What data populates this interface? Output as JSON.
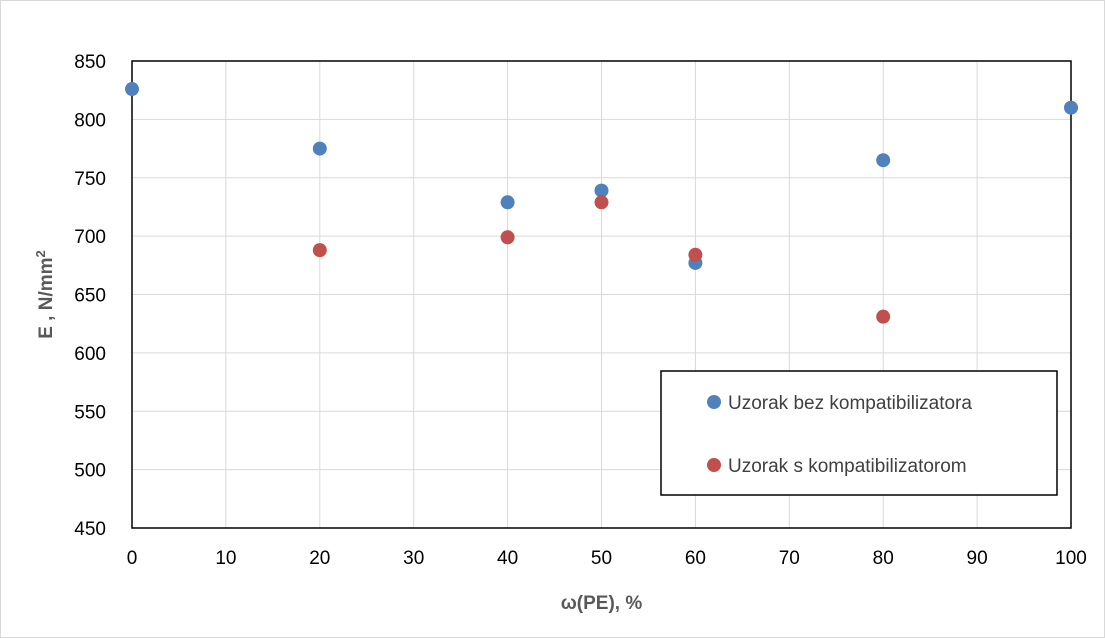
{
  "chart_data": {
    "type": "scatter",
    "xlabel": "ω(PE), %",
    "ylabel_main": "E ,  N/mm",
    "ylabel_sup": "2",
    "xlim": [
      0,
      100
    ],
    "ylim": [
      450,
      850
    ],
    "x_ticks": [
      0,
      10,
      20,
      30,
      40,
      50,
      60,
      70,
      80,
      90,
      100
    ],
    "y_ticks": [
      450,
      500,
      550,
      600,
      650,
      700,
      750,
      800,
      850
    ],
    "grid": true,
    "legend_position": "bottom-right",
    "series": [
      {
        "name": "Uzorak bez kompatibilizatora",
        "color": "#4f81bd",
        "points": [
          {
            "x": 0,
            "y": 826
          },
          {
            "x": 20,
            "y": 775
          },
          {
            "x": 40,
            "y": 729
          },
          {
            "x": 50,
            "y": 739
          },
          {
            "x": 60,
            "y": 677
          },
          {
            "x": 80,
            "y": 765
          },
          {
            "x": 100,
            "y": 810
          }
        ]
      },
      {
        "name": "Uzorak s kompatibilizatorom",
        "color": "#c0504d",
        "points": [
          {
            "x": 20,
            "y": 688
          },
          {
            "x": 40,
            "y": 699
          },
          {
            "x": 50,
            "y": 729
          },
          {
            "x": 60,
            "y": 684
          },
          {
            "x": 80,
            "y": 631
          }
        ]
      }
    ]
  }
}
